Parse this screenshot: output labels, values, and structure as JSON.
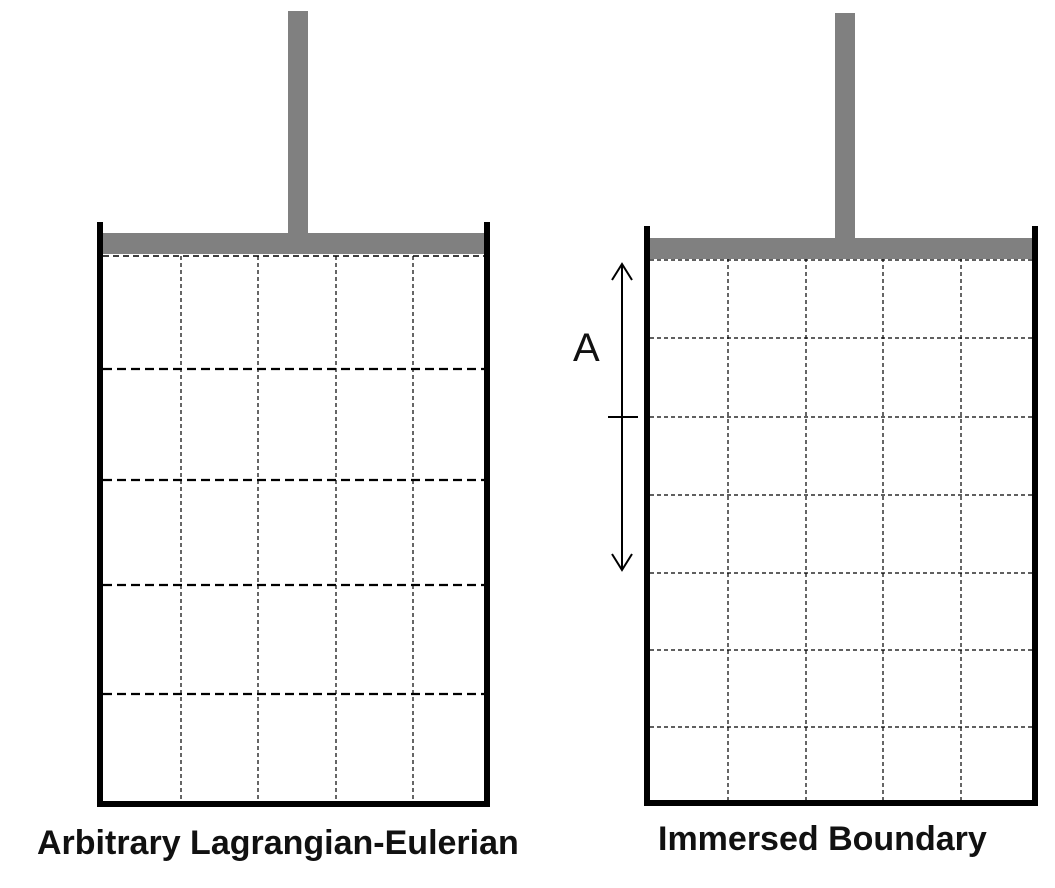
{
  "panels": [
    {
      "caption": "Arbitrary Lagrangian-Eulerian",
      "grid": {
        "columns": 5,
        "rows": 5
      }
    },
    {
      "caption": "Immersed Boundary",
      "grid": {
        "columns": 5,
        "rows": 7
      },
      "marker_label": "A"
    }
  ],
  "colors": {
    "wall": "#000000",
    "piston": "#808080",
    "grid_line": "#000000"
  }
}
